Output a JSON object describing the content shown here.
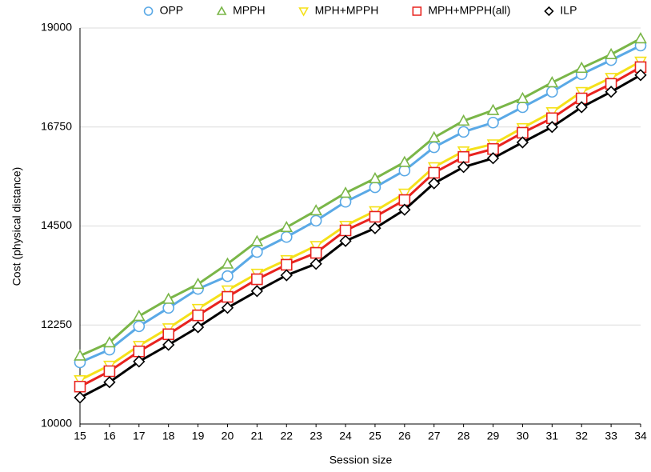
{
  "chart_data": {
    "type": "line",
    "x_label": "Session size",
    "y_label": "Cost (physical distance)",
    "x": [
      15,
      16,
      17,
      18,
      19,
      20,
      21,
      22,
      23,
      24,
      25,
      26,
      27,
      28,
      29,
      30,
      31,
      32,
      33,
      34
    ],
    "xlim": [
      15,
      34
    ],
    "xticks": [
      15,
      16,
      17,
      18,
      19,
      20,
      21,
      22,
      23,
      24,
      25,
      26,
      27,
      28,
      29,
      30,
      31,
      32,
      33,
      34
    ],
    "ylim": [
      10000,
      19000
    ],
    "yticks": [
      10000,
      12250,
      14500,
      16750,
      19000
    ],
    "grid": true,
    "legend": "top",
    "series": [
      {
        "name": "OPP",
        "color": "#5aa9e6",
        "marker": "circle",
        "values": [
          11400,
          11690,
          12220,
          12640,
          13070,
          13360,
          13910,
          14250,
          14620,
          15050,
          15380,
          15760,
          16290,
          16640,
          16850,
          17200,
          17550,
          17950,
          18270,
          18600
        ]
      },
      {
        "name": "MPPH",
        "color": "#7ab648",
        "marker": "triangle-up",
        "values": [
          11550,
          11850,
          12450,
          12840,
          13180,
          13640,
          14150,
          14470,
          14850,
          15250,
          15580,
          15950,
          16510,
          16890,
          17130,
          17400,
          17760,
          18090,
          18400,
          18760
        ]
      },
      {
        "name": "MPH+MPPH",
        "color": "#f5e11a",
        "marker": "triangle-down",
        "values": [
          11000,
          11330,
          11780,
          12180,
          12620,
          13040,
          13420,
          13730,
          14050,
          14510,
          14840,
          15240,
          15840,
          16200,
          16360,
          16730,
          17090,
          17550,
          17870,
          18240
        ]
      },
      {
        "name": "MPH+MPPH(all)",
        "color": "#e8231f",
        "marker": "square",
        "values": [
          10850,
          11200,
          11650,
          12040,
          12470,
          12890,
          13290,
          13620,
          13890,
          14400,
          14710,
          15090,
          15710,
          16070,
          16250,
          16620,
          16950,
          17400,
          17730,
          18110
        ]
      },
      {
        "name": "ILP",
        "color": "#000000",
        "marker": "diamond",
        "values": [
          10600,
          10950,
          11420,
          11800,
          12200,
          12640,
          13020,
          13380,
          13640,
          14160,
          14450,
          14870,
          15470,
          15840,
          16040,
          16400,
          16750,
          17200,
          17550,
          17930
        ]
      }
    ]
  }
}
